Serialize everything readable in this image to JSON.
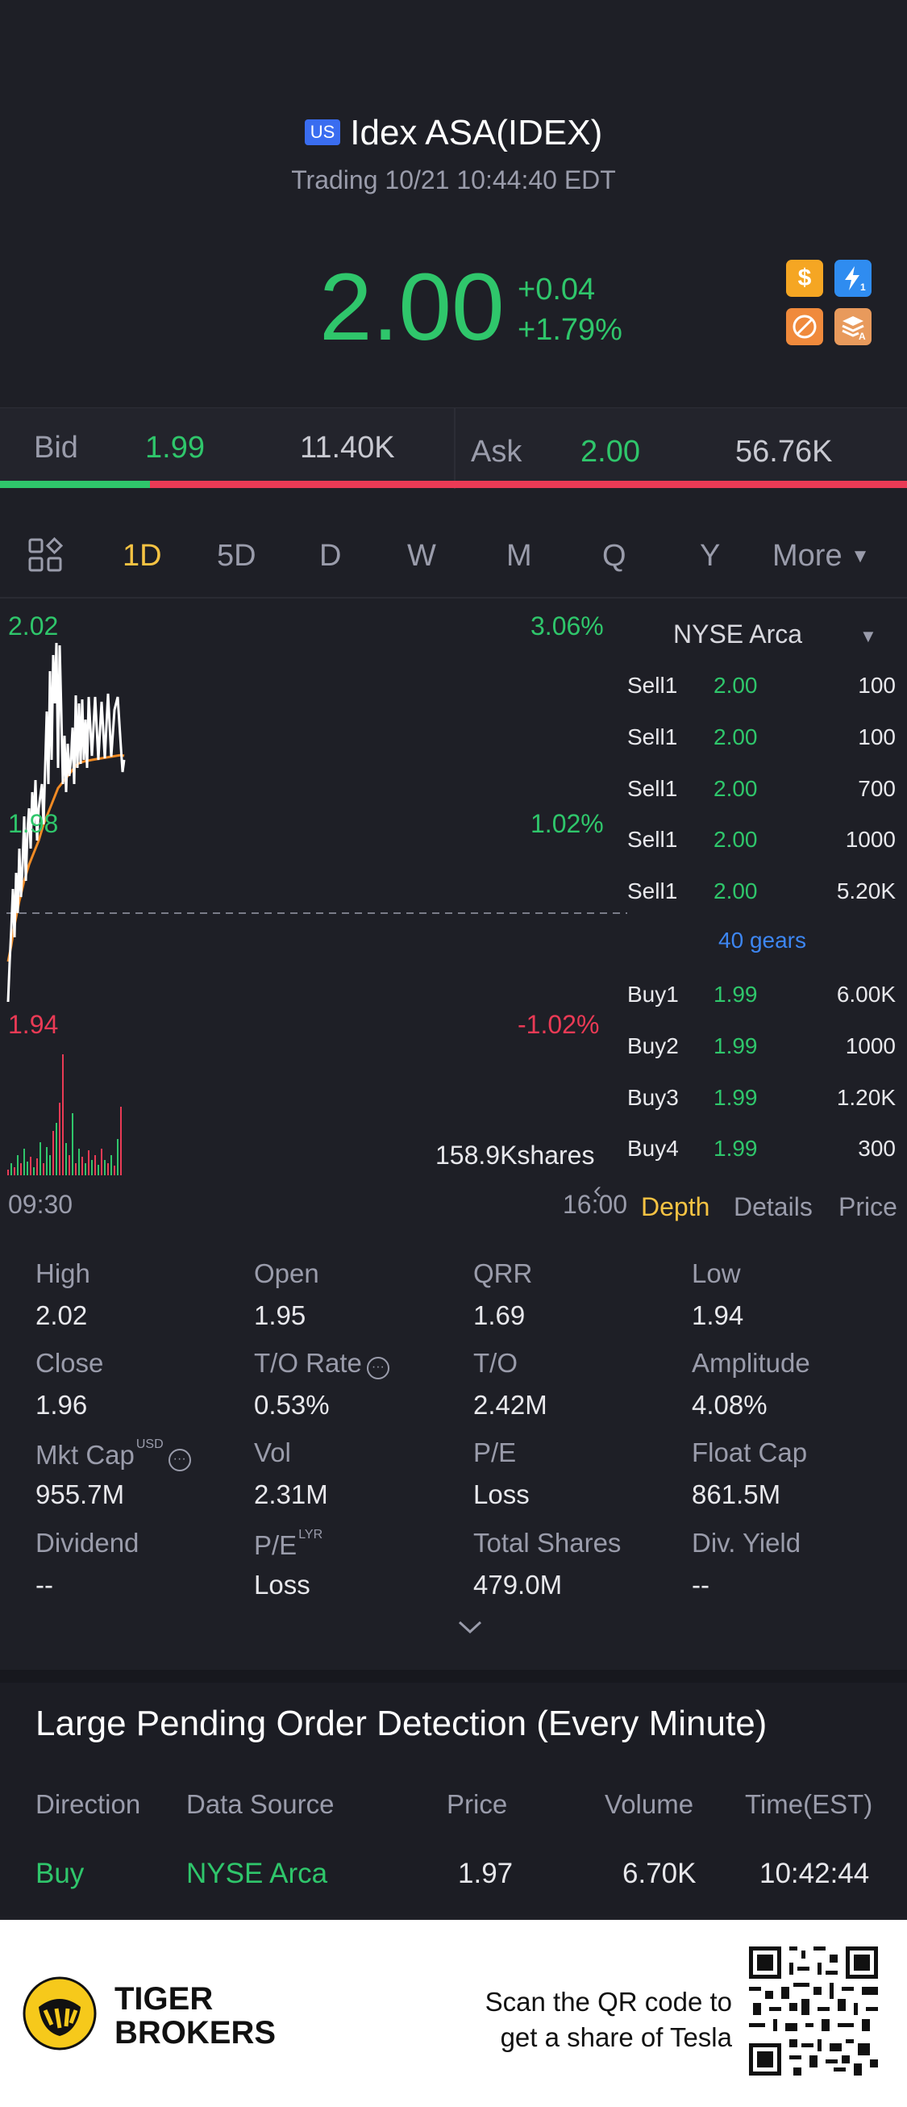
{
  "header": {
    "market_badge": "US",
    "title": "Idex ASA(IDEX)",
    "status": "Trading 10/21 10:44:40 EDT",
    "price": "2.00",
    "change": "+0.04",
    "change_pct": "+1.79%",
    "icons": [
      "dollar-icon",
      "lightning-level1-icon",
      "no-short-icon",
      "stack-a-icon"
    ]
  },
  "quote_bar": {
    "bid_label": "Bid",
    "bid_price": "1.99",
    "bid_size": "11.40K",
    "ask_label": "Ask",
    "ask_price": "2.00",
    "ask_size": "56.76K",
    "bid_ratio": 0.165
  },
  "period_tabs": {
    "items": [
      "1D",
      "5D",
      "D",
      "W",
      "M",
      "Q",
      "Y"
    ],
    "active": "1D",
    "more_label": "More"
  },
  "chart": {
    "high_label": "2.02",
    "high_pct": "3.06%",
    "mid_label": "1.98",
    "mid_pct": "1.02%",
    "low_label": "1.94",
    "low_pct": "-1.02%",
    "volume_label": "158.9Kshares",
    "start_time": "09:30",
    "end_time": "16:00",
    "colors": {
      "price_line": "#ffffff",
      "avg_line": "#f08a24",
      "up": "#2fc66b",
      "down": "#ea3a55"
    }
  },
  "order_book": {
    "exchange": "NYSE Arca",
    "sells": [
      {
        "label": "Sell1",
        "price": "2.00",
        "size": "100"
      },
      {
        "label": "Sell1",
        "price": "2.00",
        "size": "100"
      },
      {
        "label": "Sell1",
        "price": "2.00",
        "size": "700"
      },
      {
        "label": "Sell1",
        "price": "2.00",
        "size": "1000"
      },
      {
        "label": "Sell1",
        "price": "2.00",
        "size": "5.20K"
      }
    ],
    "gears_label": "40 gears",
    "buys": [
      {
        "label": "Buy1",
        "price": "1.99",
        "size": "6.00K"
      },
      {
        "label": "Buy2",
        "price": "1.99",
        "size": "1000"
      },
      {
        "label": "Buy3",
        "price": "1.99",
        "size": "1.20K"
      },
      {
        "label": "Buy4",
        "price": "1.99",
        "size": "300"
      }
    ],
    "tabs": [
      "Depth",
      "Details",
      "Price"
    ],
    "active_tab": "Depth"
  },
  "stats": [
    {
      "label": "High",
      "value": "2.02"
    },
    {
      "label": "Open",
      "value": "1.95"
    },
    {
      "label": "QRR",
      "value": "1.69"
    },
    {
      "label": "Low",
      "value": "1.94"
    },
    {
      "label": "Close",
      "value": "1.96"
    },
    {
      "label": "T/O Rate",
      "value": "0.53%"
    },
    {
      "label": "T/O",
      "value": "2.42M"
    },
    {
      "label": "Amplitude",
      "value": "4.08%"
    },
    {
      "label": "Mkt Cap",
      "value": "955.7M",
      "sup": "USD"
    },
    {
      "label": "Vol",
      "value": "2.31M"
    },
    {
      "label": "P/E",
      "value": "Loss"
    },
    {
      "label": "Float Cap",
      "value": "861.5M"
    },
    {
      "label": "Dividend",
      "value": "--"
    },
    {
      "label": "P/E",
      "value": "Loss",
      "sup": "LYR"
    },
    {
      "label": "Total Shares",
      "value": "479.0M"
    },
    {
      "label": "Div. Yield",
      "value": "--"
    }
  ],
  "large_orders": {
    "title": "Large Pending Order Detection (Every Minute)",
    "headers": [
      "Direction",
      "Data Source",
      "Price",
      "Volume",
      "Time(EST)"
    ],
    "rows": [
      {
        "direction": "Buy",
        "source": "NYSE Arca",
        "price": "1.97",
        "volume": "6.70K",
        "time": "10:42:44"
      }
    ]
  },
  "footer": {
    "brand_line1": "TIGER",
    "brand_line2": "BROKERS",
    "scan_line1": "Scan the QR code to",
    "scan_line2": "get a share of Tesla"
  }
}
